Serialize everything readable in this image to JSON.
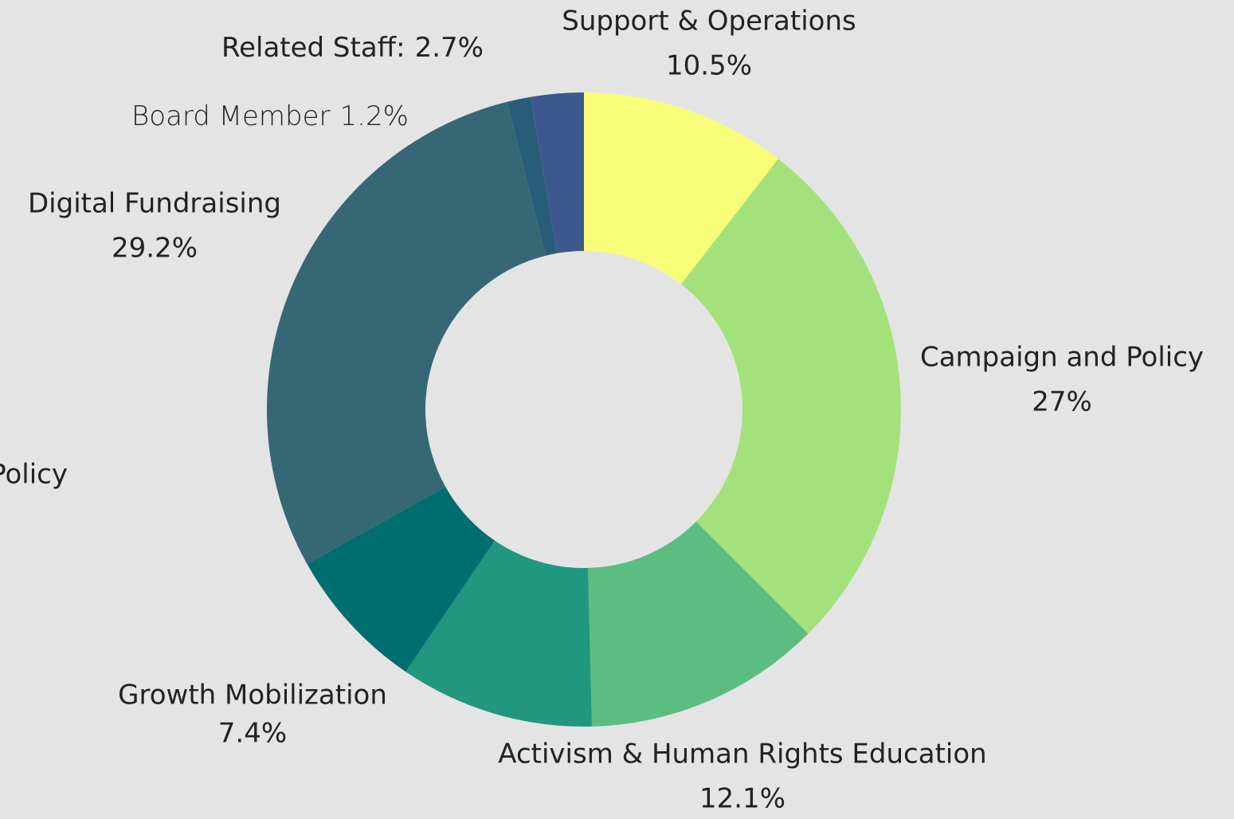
{
  "chart_data": {
    "type": "donut",
    "categories": [
      "Support & Operations",
      "Campaign and Policy",
      "Activism & Human Rights Education",
      "Policy",
      "Growth Mobilization",
      "Digital Fundraising",
      "Board Member",
      "Related Staff:"
    ],
    "values": [
      10.5,
      27,
      12.1,
      9.9,
      7.4,
      29.2,
      1.2,
      2.7
    ],
    "value_labels": [
      "10.5%",
      "27%",
      "12.1%",
      null,
      "7.4%",
      "29.2%",
      "1.2%",
      "2.7%"
    ],
    "colors": [
      "#f7fd78",
      "#a3e27a",
      "#5bbd82",
      "#21977f",
      "#006e6e",
      "#356874",
      "#285d7a",
      "#3d588c"
    ]
  }
}
